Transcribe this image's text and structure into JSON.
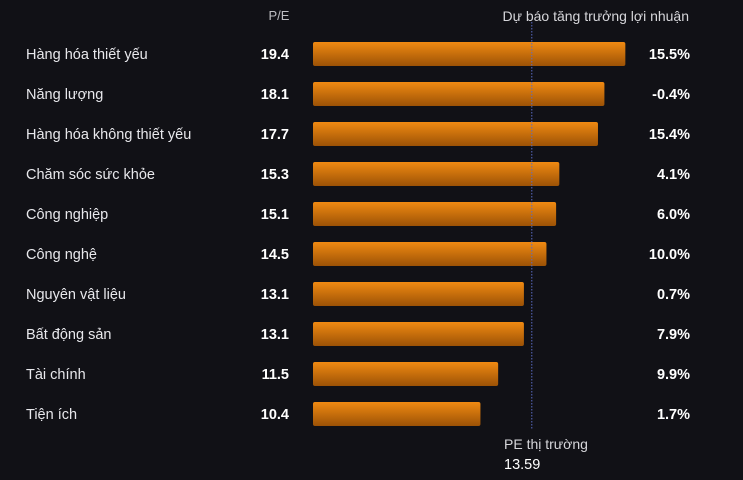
{
  "header": {
    "pe_label": "P/E",
    "growth_label": "Dự báo tăng trưởng lợi nhuận"
  },
  "market": {
    "label": "PE thị trường",
    "value_text": "13.59",
    "value": 13.59
  },
  "colors": {
    "bar_top": "#f08a12",
    "bar_bottom": "#9c5206",
    "marker_line": "#5b6cc4",
    "background": "#111116"
  },
  "chart_data": {
    "type": "bar",
    "orientation": "horizontal",
    "categories": [
      "Hàng hóa thiết yếu",
      "Năng lượng",
      "Hàng hóa không thiết yếu",
      "Chăm sóc sức khỏe",
      "Công nghiệp",
      "Công nghệ",
      "Nguyên vật liệu",
      "Bất động sản",
      "Tài chính",
      "Tiện ích"
    ],
    "series": [
      {
        "name": "P/E",
        "values": [
          19.4,
          18.1,
          17.7,
          15.3,
          15.1,
          14.5,
          13.1,
          13.1,
          11.5,
          10.4
        ]
      },
      {
        "name": "Dự báo tăng trưởng lợi nhuận",
        "values": [
          "15.5%",
          "-0.4%",
          "15.4%",
          "4.1%",
          "6.0%",
          "10.0%",
          "0.7%",
          "7.9%",
          "9.9%",
          "1.7%"
        ]
      }
    ],
    "reference_line": {
      "label": "PE thị trường",
      "value": 13.59
    }
  }
}
